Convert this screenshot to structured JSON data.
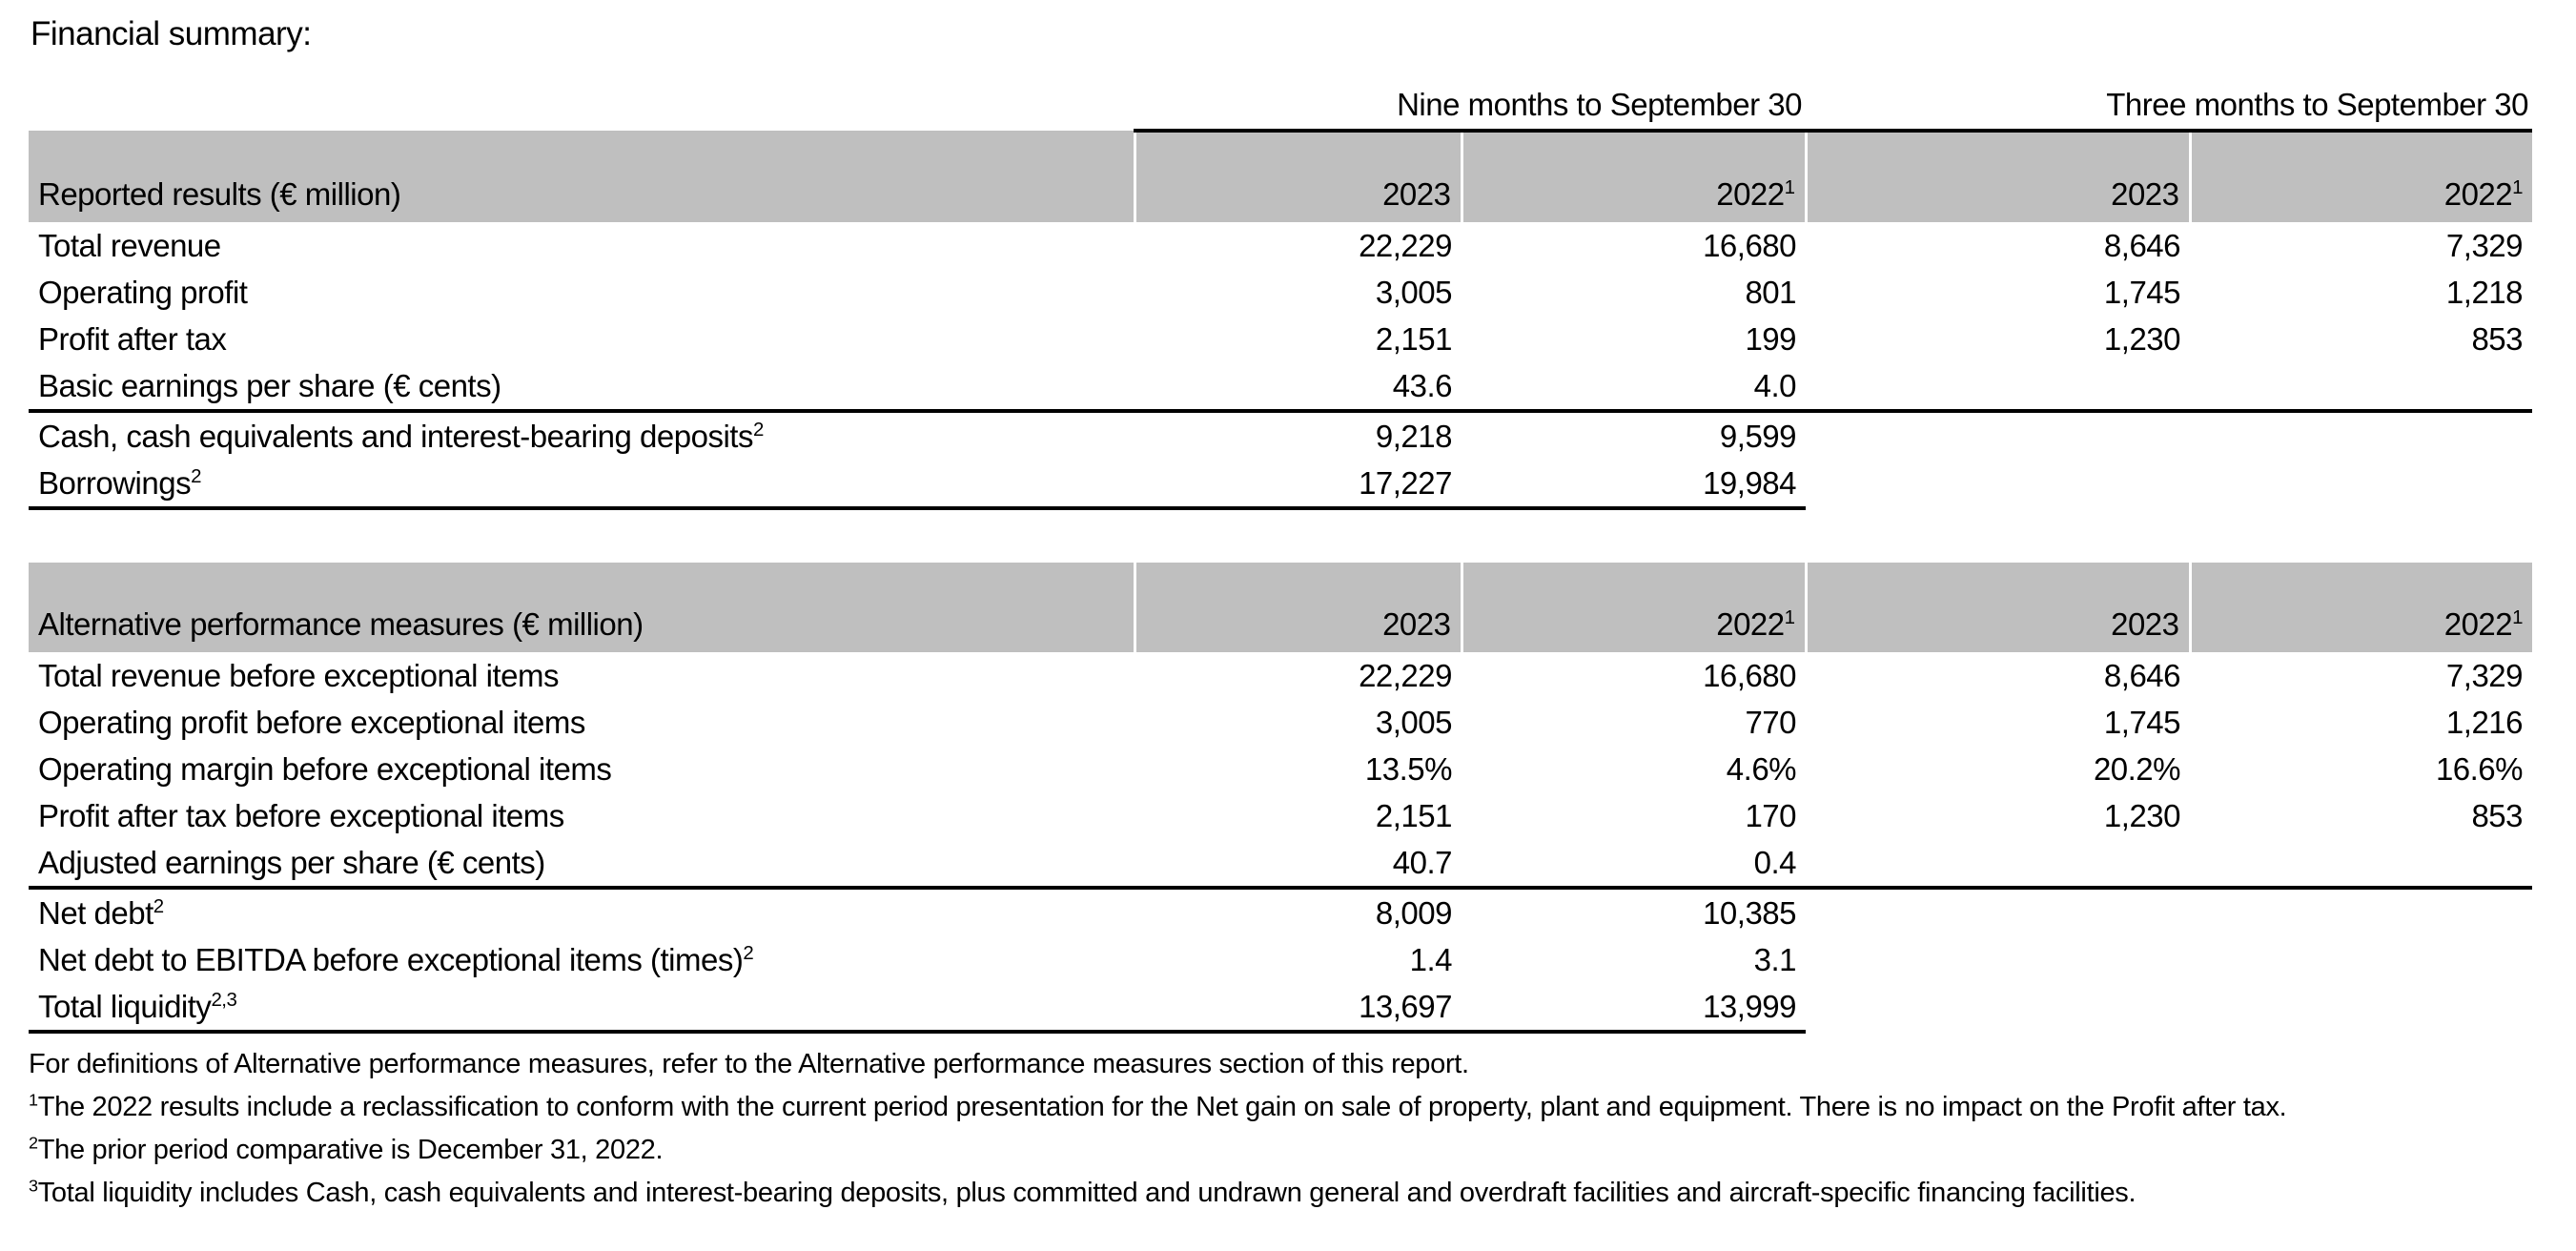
{
  "title": "Financial summary:",
  "colors": {
    "section_band": "#bfbfbf",
    "rule": "#000000",
    "background": "#ffffff"
  },
  "table": {
    "period_headers": [
      "Nine months to September 30",
      "Three months to September 30"
    ],
    "sections": [
      {
        "header": {
          "label": "Reported results (€ million)",
          "cols": [
            {
              "t": "2023",
              "sup": ""
            },
            {
              "t": "2022",
              "sup": "1"
            },
            {
              "t": "2023",
              "sup": ""
            },
            {
              "t": "2022",
              "sup": "1"
            }
          ]
        },
        "rows": [
          {
            "label": "Total revenue",
            "sup": "",
            "values": [
              "22,229",
              "16,680",
              "8,646",
              "7,329"
            ]
          },
          {
            "label": "Operating profit",
            "sup": "",
            "values": [
              "3,005",
              "801",
              "1,745",
              "1,218"
            ]
          },
          {
            "label": "Profit after tax",
            "sup": "",
            "values": [
              "2,151",
              "199",
              "1,230",
              "853"
            ]
          },
          {
            "label": "Basic earnings per share (€ cents)",
            "sup": "",
            "values": [
              "43.6",
              "4.0",
              "",
              ""
            ]
          },
          {
            "label": "Cash, cash equivalents and interest-bearing deposits",
            "sup": "2",
            "values": [
              "9,218",
              "9,599",
              "",
              ""
            ]
          },
          {
            "label": "Borrowings",
            "sup": "2",
            "values": [
              "17,227",
              "19,984",
              "",
              ""
            ]
          }
        ]
      },
      {
        "header": {
          "label": "Alternative performance measures (€ million)",
          "cols": [
            {
              "t": "2023",
              "sup": ""
            },
            {
              "t": "2022",
              "sup": "1"
            },
            {
              "t": "2023",
              "sup": ""
            },
            {
              "t": "2022",
              "sup": "1"
            }
          ]
        },
        "rows": [
          {
            "label": "Total revenue before exceptional items",
            "sup": "",
            "values": [
              "22,229",
              "16,680",
              "8,646",
              "7,329"
            ]
          },
          {
            "label": "Operating profit before exceptional items",
            "sup": "",
            "values": [
              "3,005",
              "770",
              "1,745",
              "1,216"
            ]
          },
          {
            "label": "Operating margin before exceptional items",
            "sup": "",
            "values": [
              "13.5%",
              "4.6%",
              "20.2%",
              "16.6%"
            ]
          },
          {
            "label": "Profit after tax before exceptional items",
            "sup": "",
            "values": [
              "2,151",
              "170",
              "1,230",
              "853"
            ]
          },
          {
            "label": "Adjusted earnings per share (€ cents)",
            "sup": "",
            "values": [
              "40.7",
              "0.4",
              "",
              ""
            ]
          },
          {
            "label": "Net debt",
            "sup": "2",
            "values": [
              "8,009",
              "10,385",
              "",
              ""
            ]
          },
          {
            "label": "Net debt to EBITDA before exceptional items (times)",
            "sup": "2",
            "values": [
              "1.4",
              "3.1",
              "",
              ""
            ]
          },
          {
            "label": "Total liquidity",
            "sup": "2,3",
            "values": [
              "13,697",
              "13,999",
              "",
              ""
            ]
          }
        ]
      }
    ]
  },
  "footnotes": [
    {
      "sup": "",
      "text": "For definitions of Alternative performance measures, refer to the Alternative performance measures section of this report."
    },
    {
      "sup": "1",
      "text": "The 2022 results include a reclassification to conform with the current period presentation for the Net gain on sale of property, plant and equipment. There is no impact on the Profit after tax."
    },
    {
      "sup": "2",
      "text": "The prior period comparative is December 31, 2022."
    },
    {
      "sup": "3",
      "text": "Total liquidity includes Cash, cash equivalents and interest-bearing deposits, plus committed and undrawn general and overdraft facilities and aircraft-specific financing facilities."
    }
  ]
}
